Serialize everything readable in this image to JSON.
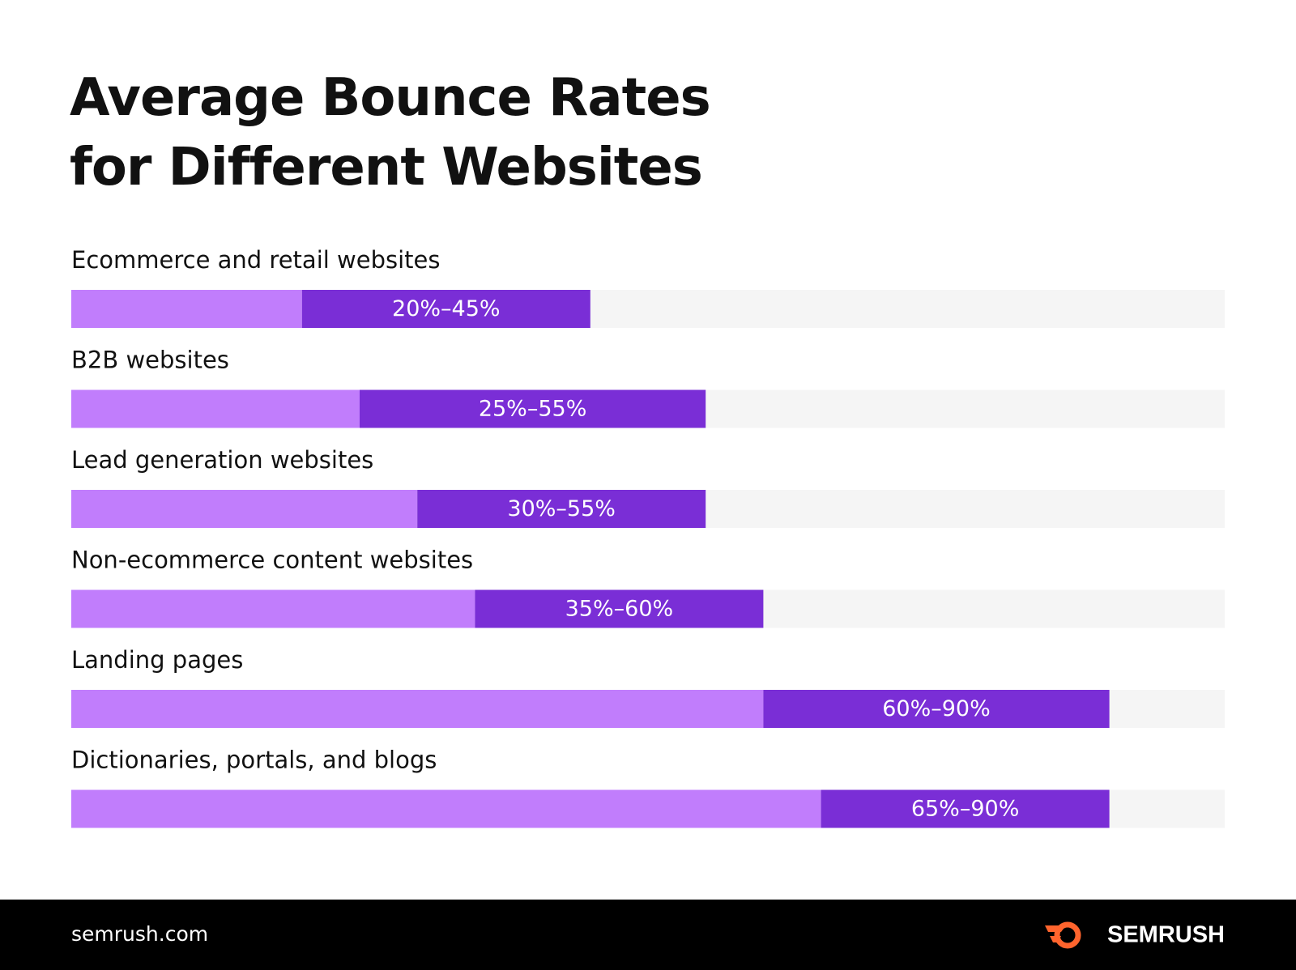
{
  "chart_data": {
    "type": "range-bar",
    "title": "Average Bounce Rates for Different Websites",
    "categories": [
      "Ecommerce and retail websites",
      "B2B websites",
      "Lead generation websites",
      "Non-ecommerce content websites",
      "Landing pages",
      "Dictionaries, portals, and blogs"
    ],
    "low": [
      20,
      25,
      30,
      35,
      60,
      65
    ],
    "high": [
      45,
      55,
      55,
      60,
      90,
      90
    ],
    "value_labels": [
      "20%–45%",
      "25%–55%",
      "30%–55%",
      "35%–60%",
      "60%–90%",
      "65%–90%"
    ],
    "low_color": "#c17dfc",
    "range_color": "#7a2ed6",
    "track_color": "#f5f5f5",
    "xlim": [
      0,
      100
    ]
  },
  "footer": {
    "site": "semrush.com",
    "brand": "SEMRUSH"
  }
}
